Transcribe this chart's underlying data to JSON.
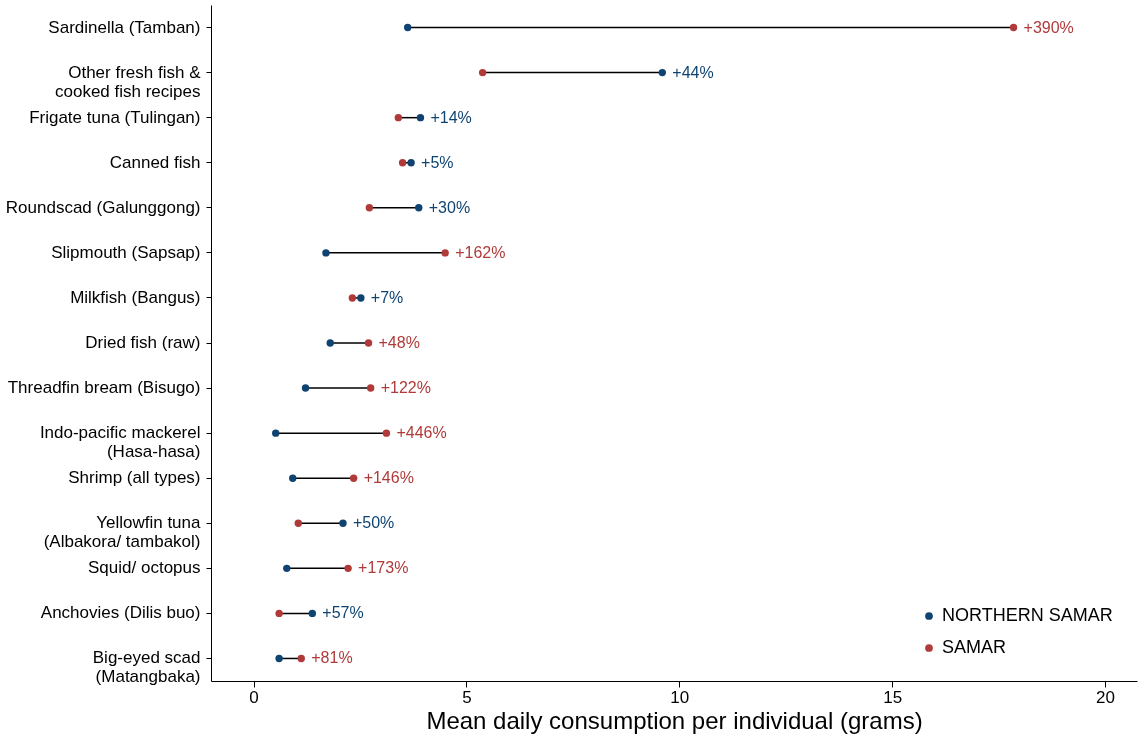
{
  "chart_data": {
    "type": "scatter",
    "xlabel": "Mean daily consumption per individual (grams)",
    "categories": [
      "Sardinella (Tamban)",
      "Other fresh fish &\ncooked fish recipes",
      "Frigate tuna (Tulingan)",
      "Canned fish",
      "Roundscad (Galunggong)",
      "Slipmouth (Sapsap)",
      "Milkfish (Bangus)",
      "Dried fish (raw)",
      "Threadfin bream (Bisugo)",
      "Indo-pacific mackerel\n(Hasa-hasa)",
      "Shrimp (all types)",
      "Yellowfin tuna\n(Albakora/ tambakol)",
      "Squid/ octopus",
      "Anchovies (Dilis buo)",
      "Big-eyed scad\n(Matangbaka)"
    ],
    "series": [
      {
        "name": "NORTHERN SAMAR",
        "color": "#0f4472",
        "values": [
          3.62,
          9.6,
          3.92,
          3.7,
          3.88,
          1.7,
          2.52,
          1.8,
          1.22,
          0.52,
          0.92,
          2.1,
          0.78,
          1.38,
          0.6
        ]
      },
      {
        "name": "SAMAR",
        "color": "#b03a3a",
        "values": [
          17.85,
          5.38,
          3.4,
          3.5,
          2.72,
          4.5,
          2.32,
          2.7,
          2.75,
          3.12,
          2.35,
          1.05,
          2.22,
          0.6,
          1.12
        ]
      }
    ],
    "orientation": "horizontal",
    "xlim": [
      -1,
      20.75
    ],
    "xticks": [
      0,
      5,
      10,
      15,
      20
    ],
    "grid": false,
    "legend": "bottom right",
    "marker": "circle",
    "annotations": [
      {
        "text": "+390%",
        "x": 17.85,
        "y": "Sardinella (Tamban)"
      },
      {
        "text": "+44%",
        "x": 9.6,
        "y": "Other fresh fish &\ncooked fish recipes"
      },
      {
        "text": "+14%",
        "x": 3.92,
        "y": "Frigate tuna (Tulingan)"
      },
      {
        "text": "+5%",
        "x": 3.7,
        "y": "Canned fish"
      },
      {
        "text": "+30%",
        "x": 3.88,
        "y": "Roundscad (Galunggong)"
      },
      {
        "text": "+162%",
        "x": 4.5,
        "y": "Slipmouth (Sapsap)"
      },
      {
        "text": "+7%",
        "x": 2.52,
        "y": "Milkfish (Bangus)"
      },
      {
        "text": "+48%",
        "x": 2.7,
        "y": "Dried fish (raw)"
      },
      {
        "text": "+122%",
        "x": 2.75,
        "y": "Threadfin bream (Bisugo)"
      },
      {
        "text": "+446%",
        "x": 3.12,
        "y": "Indo-pacific mackerel\n(Hasa-hasa)"
      },
      {
        "text": "+146%",
        "x": 2.35,
        "y": "Shrimp (all types)"
      },
      {
        "text": "+50%",
        "x": 2.1,
        "y": "Yellowfin tuna\n(Albakora/ tambakol)"
      },
      {
        "text": "+173%",
        "x": 2.22,
        "y": "Squid/ octopus"
      },
      {
        "text": "+57%",
        "x": 1.38,
        "y": "Anchovies (Dilis buo)"
      },
      {
        "text": "+81%",
        "x": 1.12,
        "y": "Big-eyed scad\n(Matangbaka)"
      }
    ]
  }
}
